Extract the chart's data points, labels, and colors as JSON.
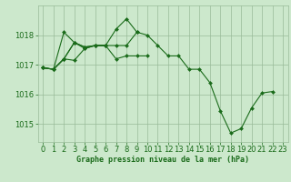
{
  "title": "Graphe pression niveau de la mer (hPa)",
  "background_color": "#cce8cc",
  "grid_color": "#99bb99",
  "line_color": "#1a6b1a",
  "marker_color": "#1a6b1a",
  "xlim": [
    -0.5,
    23.5
  ],
  "ylim": [
    1014.4,
    1019.0
  ],
  "yticks": [
    1015,
    1016,
    1017,
    1018
  ],
  "xticks": [
    0,
    1,
    2,
    3,
    4,
    5,
    6,
    7,
    8,
    9,
    10,
    11,
    12,
    13,
    14,
    15,
    16,
    17,
    18,
    19,
    20,
    21,
    22,
    23
  ],
  "series": [
    {
      "x": [
        0,
        1,
        2,
        3,
        4,
        5,
        6,
        7,
        8,
        9,
        10,
        11,
        12,
        13,
        14,
        15,
        16,
        17,
        18,
        19,
        20,
        21,
        22
      ],
      "y": [
        1016.9,
        1016.85,
        1017.2,
        1017.75,
        1017.6,
        1017.65,
        1017.65,
        1018.2,
        1018.55,
        1018.1,
        1018.0,
        1017.65,
        1017.3,
        1017.3,
        1016.85,
        1016.85,
        1016.4,
        1015.45,
        1014.7,
        1014.85,
        1015.55,
        1016.05,
        1016.1
      ]
    },
    {
      "x": [
        0,
        1,
        2,
        3,
        4,
        5,
        6
      ],
      "y": [
        1016.9,
        1016.85,
        1018.1,
        1017.75,
        1017.55,
        1017.65,
        1017.65
      ]
    },
    {
      "x": [
        0,
        1,
        2,
        3,
        4,
        5,
        6,
        7,
        8,
        9
      ],
      "y": [
        1016.9,
        1016.85,
        1017.2,
        1017.75,
        1017.6,
        1017.65,
        1017.65,
        1017.65,
        1017.65,
        1018.1
      ]
    },
    {
      "x": [
        0,
        1,
        2,
        3,
        4,
        5,
        6,
        7,
        8,
        9,
        10
      ],
      "y": [
        1016.9,
        1016.85,
        1017.2,
        1017.15,
        1017.55,
        1017.65,
        1017.65,
        1017.2,
        1017.3,
        1017.3,
        1017.3
      ]
    }
  ],
  "tick_fontsize": 6,
  "label_fontsize": 6,
  "linewidth": 0.8,
  "markersize": 2.0
}
